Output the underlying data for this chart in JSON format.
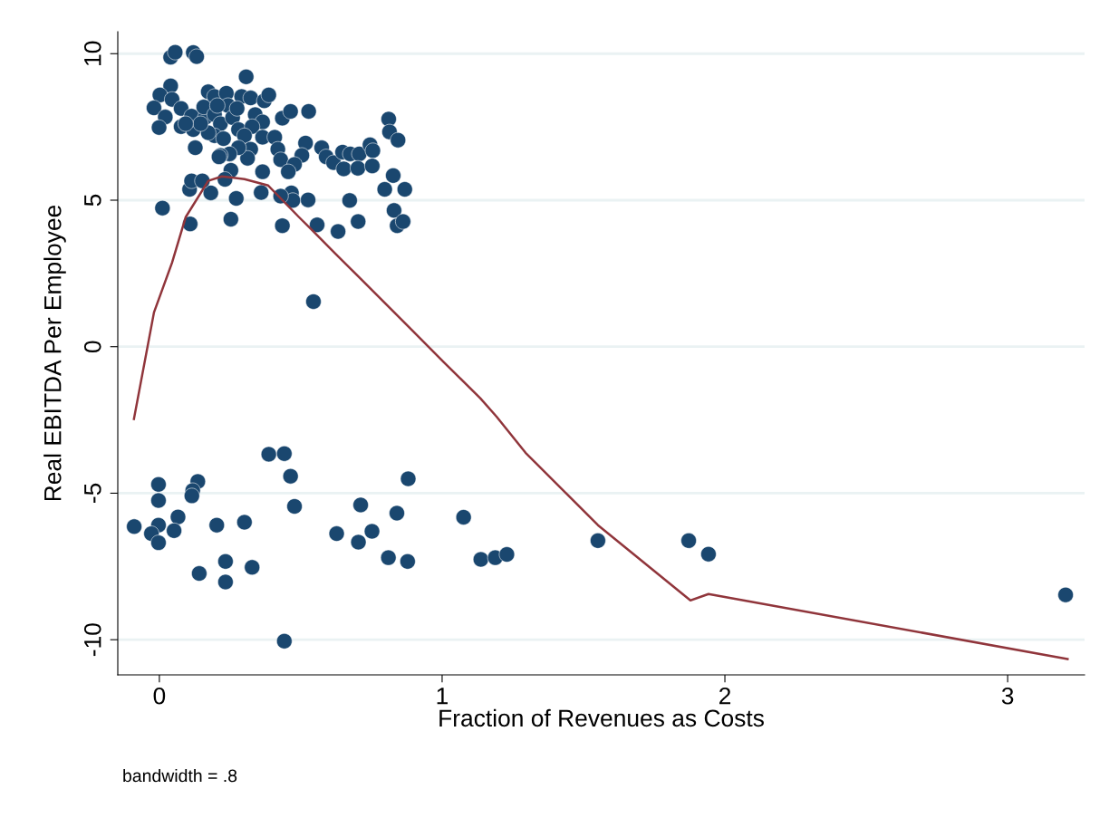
{
  "chart_data": {
    "type": "scatter",
    "xlabel": "Fraction of Revenues as Costs",
    "ylabel": "Real EBITDA Per Employee",
    "annotations": [
      "bandwidth = .8"
    ],
    "xlim": [
      -0.147,
      3.272
    ],
    "ylim": [
      -11.2,
      10.75
    ],
    "xticks": [
      0,
      1,
      2,
      3
    ],
    "yticks": [
      -10,
      -5,
      0,
      5,
      10
    ],
    "grid": "y",
    "legend": false,
    "series": [
      {
        "marker": "circle",
        "color": "#1a476f",
        "x": [
          -0.089,
          -0.003,
          -0.003,
          -0.003,
          -0.028,
          -0.003,
          0.066,
          0.052,
          0.136,
          0.118,
          0.115,
          0.141,
          0.203,
          0.234,
          0.234,
          0.301,
          0.328,
          0.387,
          0.442,
          0.464,
          0.478,
          0.442,
          0.627,
          0.712,
          0.704,
          0.752,
          0.84,
          0.81,
          0.878,
          0.88,
          1.076,
          1.137,
          1.188,
          1.229,
          1.551,
          1.872,
          1.942,
          3.205,
          0.04,
          0.056,
          0.12,
          0.132,
          0.307,
          0.04,
          0.002,
          -0.019,
          0.021,
          -0.001,
          0.045,
          0.077,
          0.077,
          0.114,
          0.12,
          0.162,
          0.173,
          0.195,
          0.157,
          0.195,
          0.216,
          0.195,
          0.227,
          0.237,
          0.243,
          0.259,
          0.28,
          0.291,
          0.323,
          0.371,
          0.387,
          0.339,
          0.365,
          0.328,
          0.301,
          0.365,
          0.408,
          0.419,
          0.323,
          0.312,
          0.28,
          0.248,
          0.216,
          0.253,
          0.365,
          0.232,
          0.429,
          0.435,
          0.464,
          0.528,
          0.517,
          0.504,
          0.478,
          0.456,
          0.574,
          0.59,
          0.616,
          0.648,
          0.652,
          0.675,
          0.707,
          0.702,
          0.745,
          0.755,
          0.753,
          0.811,
          0.814,
          0.844,
          0.827,
          0.797,
          0.868,
          0.83,
          0.841,
          0.862,
          0.673,
          0.703,
          0.632,
          0.558,
          0.435,
          0.526,
          0.467,
          0.472,
          0.429,
          0.36,
          0.272,
          0.253,
          0.182,
          0.107,
          0.114,
          0.152,
          0.011,
          0.109,
          0.127,
          0.545,
          0.211,
          0.173,
          0.146,
          0.093,
          0.275,
          0.205
        ],
        "values": [
          -6.14,
          -4.7,
          -5.25,
          -6.09,
          -6.38,
          -6.69,
          -5.81,
          -6.28,
          -4.6,
          -4.91,
          -5.09,
          -7.74,
          -6.09,
          -7.33,
          -8.03,
          -5.99,
          -7.53,
          -3.67,
          -3.65,
          -4.42,
          -5.45,
          -10.05,
          -6.38,
          -5.4,
          -6.67,
          -6.3,
          -5.68,
          -7.2,
          -7.33,
          -4.51,
          -5.82,
          -7.26,
          -7.2,
          -7.09,
          -6.62,
          -6.62,
          -7.08,
          -8.47,
          9.88,
          10.05,
          10.04,
          9.9,
          9.21,
          8.9,
          8.59,
          8.15,
          7.84,
          7.48,
          8.44,
          8.13,
          7.51,
          7.87,
          7.41,
          7.82,
          8.7,
          8.54,
          8.18,
          7.92,
          7.61,
          7.2,
          7.1,
          8.65,
          8.23,
          7.82,
          7.41,
          8.54,
          8.49,
          8.39,
          8.59,
          7.92,
          7.67,
          7.51,
          7.2,
          7.15,
          7.15,
          6.74,
          6.74,
          6.43,
          6.79,
          6.58,
          6.53,
          6.02,
          5.97,
          5.71,
          6.38,
          7.8,
          8.03,
          8.03,
          6.95,
          6.53,
          6.22,
          5.97,
          6.79,
          6.48,
          6.28,
          6.64,
          6.07,
          6.58,
          6.58,
          6.09,
          6.89,
          6.69,
          6.17,
          7.77,
          7.33,
          7.05,
          5.84,
          5.37,
          5.37,
          4.65,
          4.13,
          4.27,
          4.99,
          4.27,
          3.93,
          4.16,
          4.13,
          5.01,
          5.25,
          4.99,
          5.14,
          5.26,
          5.06,
          4.35,
          5.25,
          5.37,
          5.66,
          5.66,
          4.73,
          4.19,
          6.79,
          1.54,
          6.48,
          7.3,
          7.61,
          7.61,
          8.13,
          8.23
        ]
      },
      {
        "type": "line",
        "marker": "none",
        "line_style": "solid",
        "color": "#90353b",
        "x": [
          -0.09,
          -0.019,
          0.045,
          0.093,
          0.173,
          0.221,
          0.301,
          0.385,
          0.494,
          0.542,
          0.622,
          0.718,
          0.814,
          0.894,
          1.006,
          1.135,
          1.192,
          1.295,
          1.551,
          1.878,
          1.942,
          3.212
        ],
        "values": [
          -2.47,
          1.17,
          2.87,
          4.42,
          5.66,
          5.81,
          5.72,
          5.5,
          4.42,
          3.96,
          3.18,
          2.26,
          1.33,
          0.56,
          -0.53,
          -1.76,
          -2.38,
          -3.62,
          -6.09,
          -8.66,
          -8.44,
          -10.66
        ]
      }
    ]
  }
}
